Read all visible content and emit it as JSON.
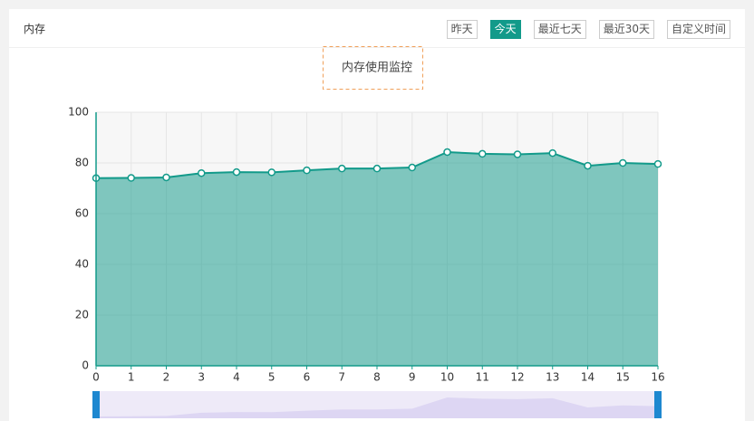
{
  "header": {
    "title": "内存",
    "buttons": [
      "昨天",
      "今天",
      "最近七天",
      "最近30天",
      "自定义时间"
    ],
    "active": 1
  },
  "chart_data": {
    "type": "area",
    "title": "内存使用监控",
    "x": [
      0,
      1,
      2,
      3,
      4,
      5,
      6,
      7,
      8,
      9,
      10,
      11,
      12,
      13,
      14,
      15,
      16
    ],
    "values": [
      74,
      74.1,
      74.3,
      76,
      76.4,
      76.3,
      77.1,
      77.8,
      77.8,
      78.2,
      84.3,
      83.6,
      83.4,
      83.9,
      78.9,
      80,
      79.6
    ],
    "color": "#129a8a",
    "xlim": [
      0,
      16
    ],
    "xticks": [
      0,
      1,
      2,
      3,
      4,
      5,
      6,
      7,
      8,
      9,
      10,
      11,
      12,
      13,
      14,
      15,
      16
    ],
    "ylim": [
      0,
      100
    ],
    "yticks": [
      0,
      20,
      40,
      60,
      80,
      100
    ],
    "grid": true
  }
}
